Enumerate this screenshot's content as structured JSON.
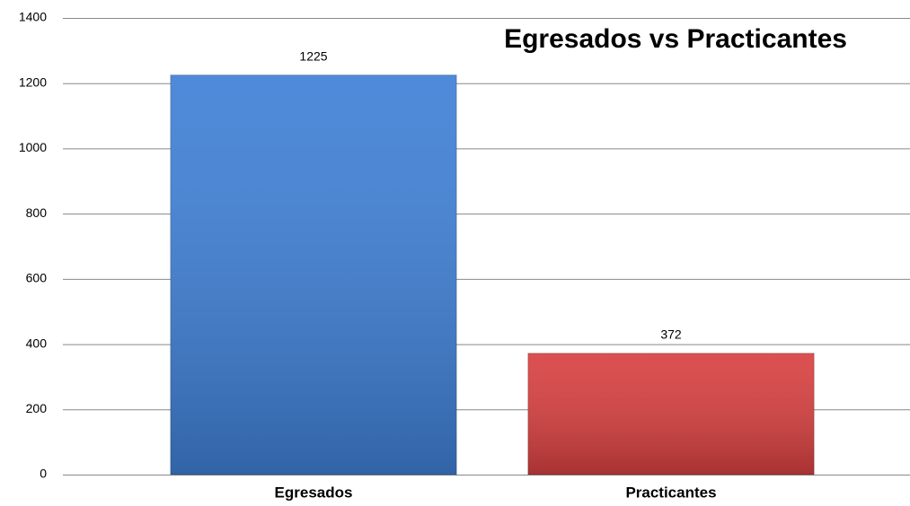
{
  "chart_data": {
    "type": "bar",
    "title": "Egresados vs Practicantes",
    "categories": [
      "Egresados",
      "Practicantes"
    ],
    "values": [
      1225,
      372
    ],
    "colors": [
      "#3f80d6",
      "#d84040"
    ],
    "ylim": [
      0,
      1400
    ],
    "yticks": [
      0,
      200,
      400,
      600,
      800,
      1000,
      1200,
      1400
    ],
    "grid": true
  }
}
